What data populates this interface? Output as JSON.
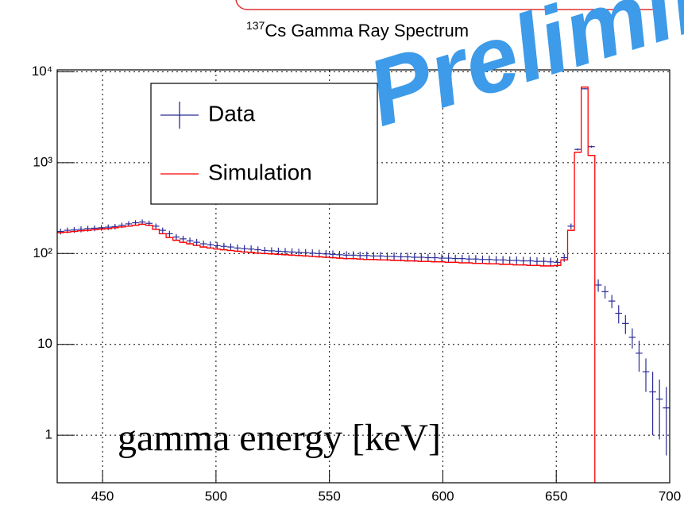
{
  "chart_data": {
    "type": "histogram",
    "title": "Cs Gamma Ray Spectrum",
    "title_superscript": "137",
    "xlabel": "gamma energy [keV]",
    "annotation": "Preliminary",
    "log_y": true,
    "grid": true,
    "legend": "upper left",
    "bins": [
      430,
      433,
      436,
      439,
      442,
      445,
      448,
      451,
      454,
      457,
      460,
      463,
      466,
      469,
      472,
      475,
      478,
      481,
      484,
      487,
      490,
      493,
      496,
      499,
      502,
      505,
      508,
      511,
      514,
      517,
      520,
      523,
      526,
      529,
      532,
      535,
      538,
      541,
      544,
      547,
      550,
      553,
      556,
      559,
      562,
      565,
      568,
      571,
      574,
      577,
      580,
      583,
      586,
      589,
      592,
      595,
      598,
      601,
      604,
      607,
      610,
      613,
      616,
      619,
      622,
      625,
      628,
      631,
      634,
      637,
      640,
      643,
      646,
      649,
      652,
      655,
      658,
      661,
      664,
      667,
      670,
      673,
      676,
      679,
      682,
      685,
      688,
      691,
      694,
      697,
      700
    ],
    "series": [
      {
        "name": "Data",
        "color": "#2a2a96",
        "values": [
          175,
          180,
          182,
          185,
          188,
          190,
          192,
          195,
          198,
          205,
          212,
          218,
          222,
          215,
          200,
          180,
          165,
          152,
          145,
          138,
          133,
          128,
          125,
          122,
          120,
          118,
          115,
          113,
          112,
          110,
          108,
          107,
          106,
          105,
          104,
          103,
          102,
          101,
          100,
          99,
          98,
          97,
          96,
          96,
          95,
          95,
          94,
          94,
          93,
          93,
          92,
          92,
          91,
          91,
          90,
          90,
          89,
          89,
          88,
          88,
          87,
          87,
          86,
          86,
          85,
          85,
          84,
          84,
          83,
          83,
          82,
          82,
          81,
          80,
          90,
          200,
          1400,
          6500,
          1500,
          45,
          38,
          30,
          22,
          17,
          12,
          8,
          5,
          3,
          2.5,
          2
        ],
        "errors": [
          13,
          13,
          13,
          14,
          14,
          14,
          14,
          14,
          14,
          14,
          15,
          15,
          15,
          15,
          14,
          13,
          13,
          12,
          12,
          12,
          12,
          11,
          11,
          11,
          11,
          11,
          11,
          11,
          11,
          10,
          10,
          10,
          10,
          10,
          10,
          10,
          10,
          10,
          10,
          10,
          10,
          10,
          10,
          10,
          10,
          10,
          10,
          10,
          10,
          10,
          10,
          10,
          10,
          10,
          9,
          9,
          9,
          9,
          9,
          9,
          9,
          9,
          9,
          9,
          9,
          9,
          9,
          9,
          9,
          9,
          9,
          9,
          9,
          9,
          9,
          14,
          37,
          81,
          39,
          7,
          6,
          5,
          5,
          4,
          3,
          3,
          2,
          2,
          1.6,
          1.4
        ]
      },
      {
        "name": "Simulation",
        "color": "#ff0000",
        "values": [
          170,
          172,
          175,
          178,
          180,
          183,
          186,
          188,
          192,
          196,
          200,
          205,
          210,
          205,
          185,
          165,
          150,
          140,
          133,
          128,
          123,
          118,
          115,
          112,
          110,
          108,
          106,
          104,
          103,
          101,
          100,
          99,
          98,
          97,
          96,
          95,
          94,
          93,
          92,
          91,
          90,
          89,
          88,
          88,
          87,
          86,
          86,
          85,
          85,
          84,
          84,
          83,
          83,
          82,
          82,
          81,
          81,
          80,
          80,
          79,
          79,
          78,
          78,
          77,
          77,
          76,
          76,
          75,
          75,
          74,
          74,
          73,
          73,
          74,
          85,
          180,
          1300,
          6800,
          1200,
          0,
          0,
          0,
          0,
          0,
          0,
          0,
          0,
          0,
          0,
          0
        ]
      }
    ],
    "xlim": [
      430,
      700
    ],
    "xticks": [
      450,
      500,
      550,
      600,
      650,
      700
    ],
    "ylim": [
      0.3,
      10500
    ],
    "yticks": [
      1,
      10,
      {
        "value": 100,
        "label": "10²"
      },
      {
        "value": 1000,
        "label": "10³"
      },
      {
        "value": 10000,
        "label": "10⁴"
      }
    ]
  }
}
